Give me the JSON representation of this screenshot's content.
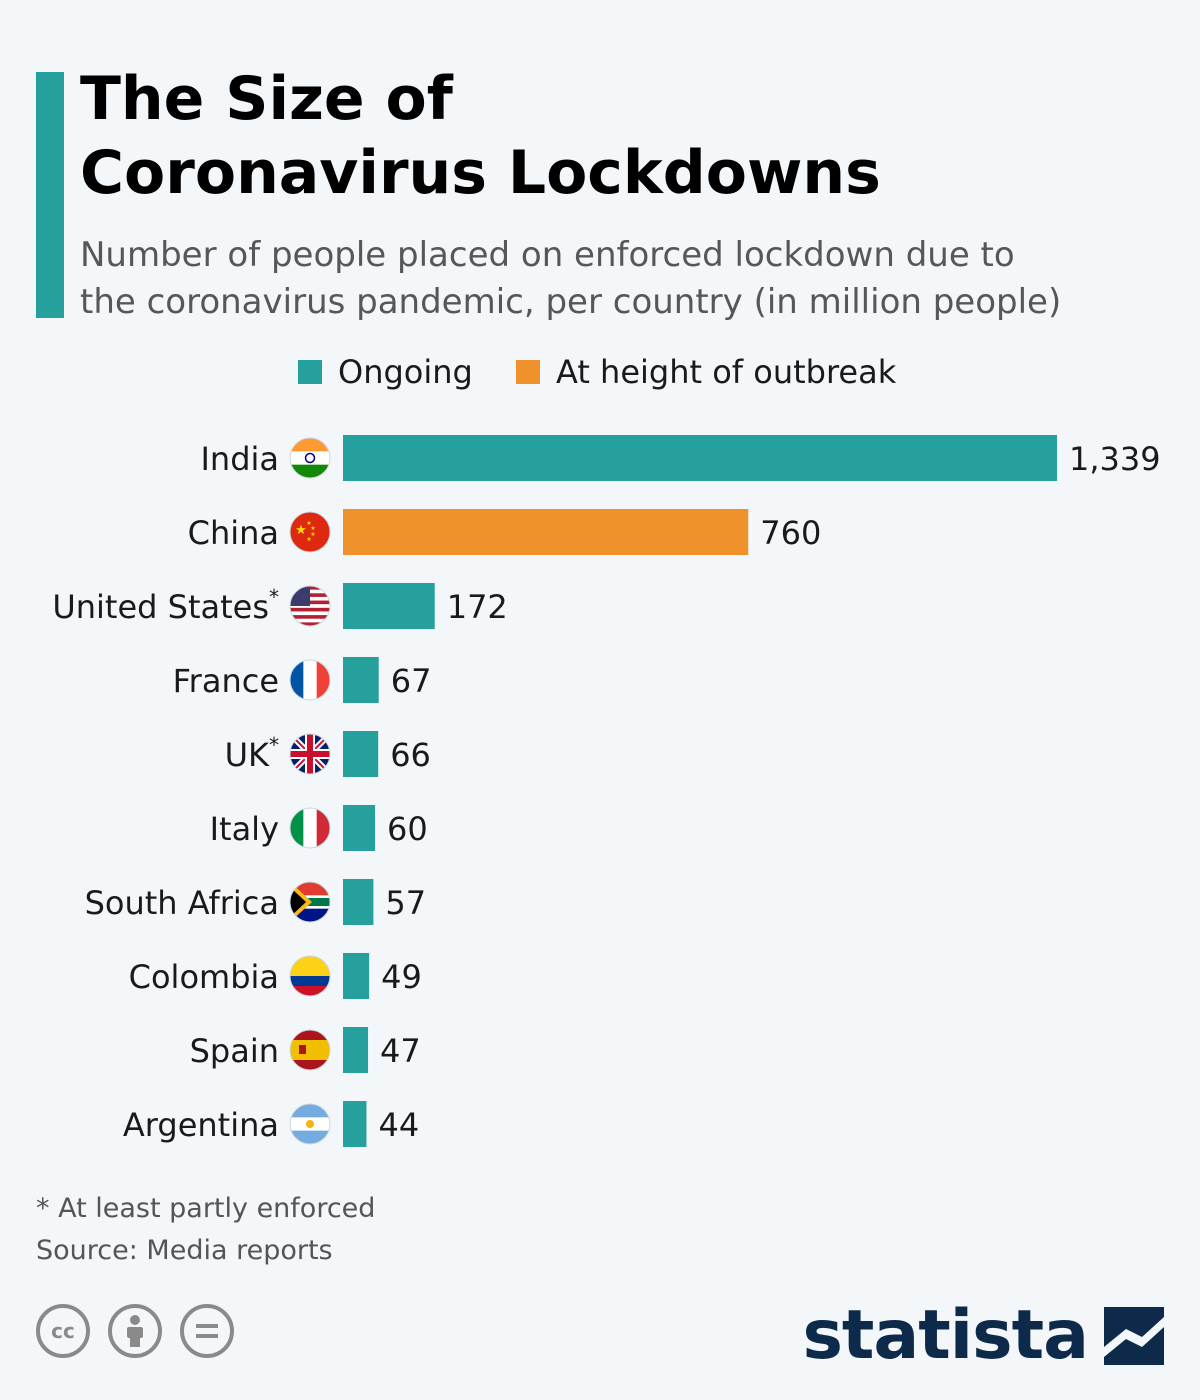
{
  "title": {
    "line1": "The Size of",
    "line2": "Coronavirus Lockdowns"
  },
  "subtitle": {
    "line1": "Number of people placed on enforced lockdown due to",
    "line2": "the coronavirus pandemic, per country (in million people)"
  },
  "legend": [
    {
      "label": "Ongoing",
      "color": "#26a09c"
    },
    {
      "label": "At height of outbreak",
      "color": "#f0922b"
    }
  ],
  "footnote": "* At least partly enforced",
  "source": "Source: Media reports",
  "brand": "statista",
  "license_icons": [
    "cc-icon",
    "attribution-icon",
    "no-derivatives-icon"
  ],
  "chart_data": {
    "type": "bar",
    "orientation": "horizontal",
    "categories": [
      "India",
      "China",
      "United States",
      "France",
      "UK",
      "Italy",
      "South Africa",
      "Colombia",
      "Spain",
      "Argentina"
    ],
    "asterisk": [
      false,
      false,
      true,
      false,
      true,
      false,
      false,
      false,
      false,
      false
    ],
    "flags": [
      "india-flag-icon",
      "china-flag-icon",
      "usa-flag-icon",
      "france-flag-icon",
      "uk-flag-icon",
      "italy-flag-icon",
      "south-africa-flag-icon",
      "colombia-flag-icon",
      "spain-flag-icon",
      "argentina-flag-icon"
    ],
    "values": [
      1339,
      760,
      172,
      67,
      66,
      60,
      57,
      49,
      47,
      44
    ],
    "value_labels": [
      "1,339",
      "760",
      "172",
      "67",
      "66",
      "60",
      "57",
      "49",
      "47",
      "44"
    ],
    "status": [
      "Ongoing",
      "At height of outbreak",
      "Ongoing",
      "Ongoing",
      "Ongoing",
      "Ongoing",
      "Ongoing",
      "Ongoing",
      "Ongoing",
      "Ongoing"
    ],
    "xlim": [
      0,
      1339
    ],
    "grid": false,
    "legend_position": "top-center"
  }
}
